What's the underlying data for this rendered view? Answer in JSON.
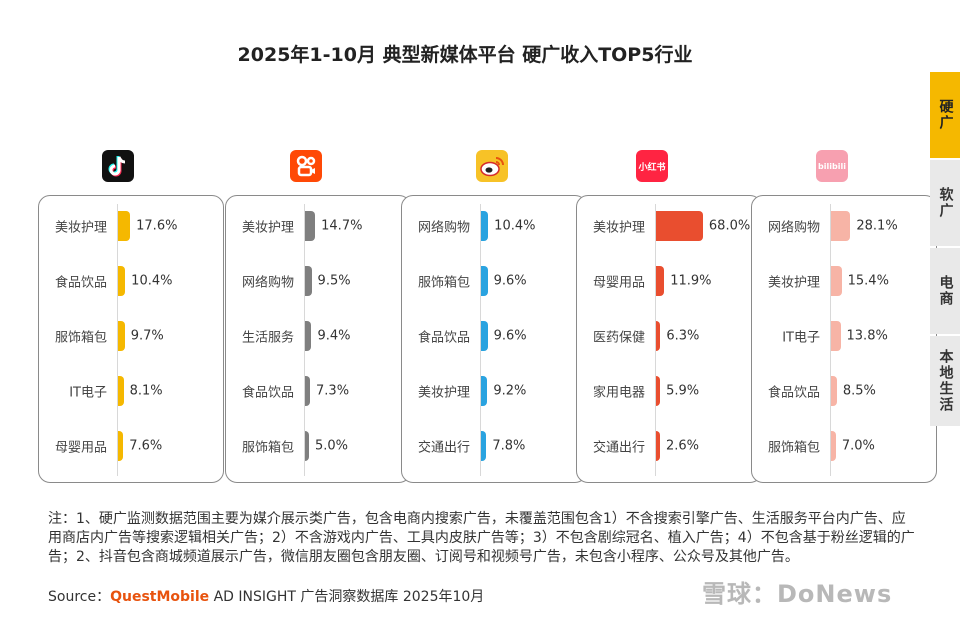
{
  "title": "2025年1-10月 典型新媒体平台 硬广收入TOP5行业",
  "tabs": [
    {
      "label": "硬广",
      "active": true
    },
    {
      "label": "软广",
      "active": false
    },
    {
      "label": "电商",
      "active": false
    },
    {
      "label": "本地生活",
      "active": false
    }
  ],
  "platform_icons": [
    {
      "icon": "douyin-logo-icon",
      "color": "#111111"
    },
    {
      "icon": "kuaishou-logo-icon",
      "color": "#ff4906"
    },
    {
      "icon": "weibo-logo-icon",
      "color": "#f7c227"
    },
    {
      "icon": "xiaohongshu-logo-icon",
      "color": "#ff2442",
      "text": "小红书"
    },
    {
      "icon": "bilibili-logo-icon",
      "color": "#f7a0b0",
      "text": "bilibili"
    }
  ],
  "chart_data": [
    {
      "type": "bar",
      "orientation": "horizontal",
      "color": "#f5b800",
      "categories": [
        "美妆护理",
        "食品饮品",
        "服饰箱包",
        "IT电子",
        "母婴用品"
      ],
      "values": [
        17.6,
        10.4,
        9.7,
        8.1,
        7.6
      ],
      "value_labels": [
        "17.6%",
        "10.4%",
        "9.7%",
        "8.1%",
        "7.6%"
      ]
    },
    {
      "type": "bar",
      "orientation": "horizontal",
      "color": "#7f7f7f",
      "categories": [
        "美妆护理",
        "网络购物",
        "生活服务",
        "食品饮品",
        "服饰箱包"
      ],
      "values": [
        14.7,
        9.5,
        9.4,
        7.3,
        5.0
      ],
      "value_labels": [
        "14.7%",
        "9.5%",
        "9.4%",
        "7.3%",
        "5.0%"
      ]
    },
    {
      "type": "bar",
      "orientation": "horizontal",
      "color": "#2aa3e0",
      "categories": [
        "网络购物",
        "服饰箱包",
        "食品饮品",
        "美妆护理",
        "交通出行"
      ],
      "values": [
        10.4,
        9.6,
        9.6,
        9.2,
        7.8
      ],
      "value_labels": [
        "10.4%",
        "9.6%",
        "9.6%",
        "9.2%",
        "7.8%"
      ]
    },
    {
      "type": "bar",
      "orientation": "horizontal",
      "color": "#e94e2f",
      "categories": [
        "美妆护理",
        "母婴用品",
        "医药保健",
        "家用电器",
        "交通出行"
      ],
      "values": [
        68.0,
        11.9,
        6.3,
        5.9,
        2.6
      ],
      "value_labels": [
        "68.0%",
        "11.9%",
        "6.3%",
        "5.9%",
        "2.6%"
      ]
    },
    {
      "type": "bar",
      "orientation": "horizontal",
      "color": "#f7b4a6",
      "categories": [
        "网络购物",
        "美妆护理",
        "IT电子",
        "食品饮品",
        "服饰箱包"
      ],
      "values": [
        28.1,
        15.4,
        13.8,
        8.5,
        7.0
      ],
      "value_labels": [
        "28.1%",
        "15.4%",
        "13.8%",
        "8.5%",
        "7.0%"
      ]
    }
  ],
  "note": "注：1、硬广监测数据范围主要为媒介展示类广告，包含电商内搜索广告，未覆盖范围包含1）不含搜索引擎广告、生活服务平台内广告、应用商店内广告等搜索逻辑相关广告；2）不含游戏内广告、工具内皮肤广告等；3）不包含剧综冠名、植入广告；4）不包含基于粉丝逻辑的广告；2、抖音包含商城频道展示广告，微信朋友圈包含朋友圈、订阅号和视频号广告，未包含小程序、公众号及其他广告。",
  "source": {
    "prefix": "Source：",
    "brand": "QuestMobile",
    "suffix": " AD INSIGHT 广告洞察数据库 2025年10月"
  },
  "watermark": "雪球：DoNews"
}
